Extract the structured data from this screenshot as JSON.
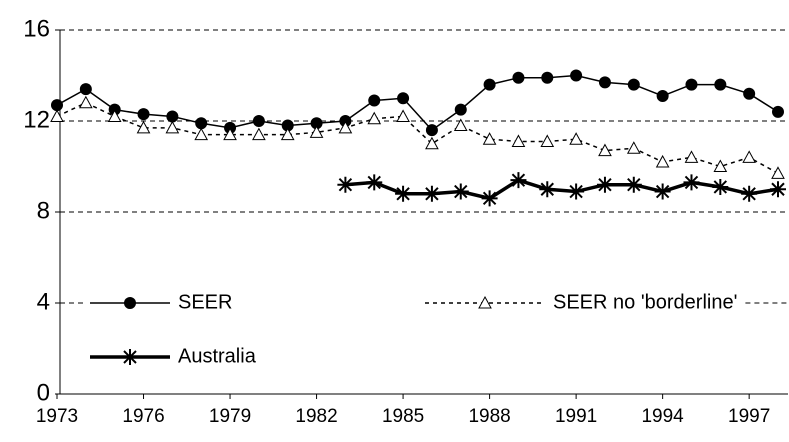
{
  "chart_data": {
    "type": "line",
    "x": [
      1973,
      1974,
      1975,
      1976,
      1977,
      1978,
      1979,
      1980,
      1981,
      1982,
      1983,
      1984,
      1985,
      1986,
      1987,
      1988,
      1989,
      1990,
      1991,
      1992,
      1993,
      1994,
      1995,
      1996,
      1997,
      1998
    ],
    "series": [
      {
        "name": "SEER",
        "color": "#000000",
        "line_style": "solid",
        "line_width": 1.5,
        "marker": "circle",
        "values": [
          12.7,
          13.4,
          12.5,
          12.3,
          12.2,
          11.9,
          11.7,
          12.0,
          11.8,
          11.9,
          12.0,
          12.9,
          13.0,
          11.6,
          12.5,
          13.6,
          13.9,
          13.9,
          14.0,
          13.7,
          13.6,
          13.1,
          13.6,
          13.6,
          13.2,
          12.4
        ]
      },
      {
        "name": "SEER no 'borderline'",
        "color": "#000000",
        "line_style": "dotted",
        "line_width": 1.5,
        "marker": "triangle",
        "values": [
          12.2,
          12.8,
          12.2,
          11.7,
          11.7,
          11.4,
          11.4,
          11.4,
          11.4,
          11.5,
          11.7,
          12.1,
          12.2,
          11.0,
          11.8,
          11.2,
          11.1,
          11.1,
          11.2,
          10.7,
          10.8,
          10.2,
          10.4,
          10.0,
          10.4,
          9.7
        ]
      },
      {
        "name": "Australia",
        "color": "#000000",
        "line_style": "solid",
        "line_width": 3.5,
        "marker": "asterisk",
        "values": [
          null,
          null,
          null,
          null,
          null,
          null,
          null,
          null,
          null,
          null,
          9.2,
          9.3,
          8.8,
          8.8,
          8.9,
          8.6,
          9.4,
          9.0,
          8.9,
          9.2,
          9.2,
          8.9,
          9.3,
          9.1,
          8.8,
          9.0
        ]
      }
    ],
    "xlim": [
      1973,
      1998
    ],
    "xticks": [
      1973,
      1976,
      1979,
      1982,
      1985,
      1988,
      1991,
      1994,
      1997
    ],
    "ylim": [
      0,
      16
    ],
    "yticks": [
      0,
      4,
      8,
      12,
      16
    ],
    "grid": true
  }
}
